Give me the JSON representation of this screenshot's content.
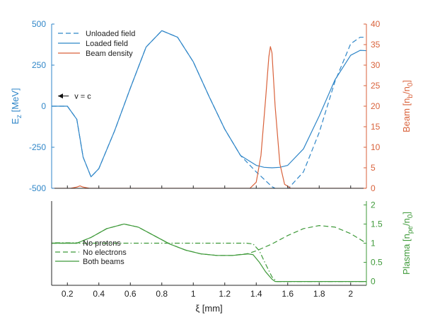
{
  "colors": {
    "blue": "#2f86c8",
    "orange": "#d9623b",
    "green": "#3f9a3a",
    "axis": "#262626"
  },
  "chart_data": [
    {
      "type": "line",
      "name": "top-panel",
      "xlabel": "",
      "xlim": [
        0.1,
        2.1
      ],
      "ylabel_left": "E_z [MeV]",
      "ylim_left": [
        -500,
        500
      ],
      "yticks_left": [
        -500,
        -250,
        0,
        250,
        500
      ],
      "ytick_labels_left": [
        "-500",
        "-250",
        "0",
        "250",
        "500"
      ],
      "ylabel_right": "Beam [n_b/n_0]",
      "ylim_right": [
        0,
        40
      ],
      "yticks_right": [
        0,
        5,
        10,
        15,
        20,
        25,
        30,
        35,
        40
      ],
      "ytick_labels_right": [
        "0",
        "5",
        "10",
        "15",
        "20",
        "25",
        "30",
        "35",
        "40"
      ],
      "legend_position": "top-left",
      "annotation": {
        "text": "v = c",
        "x": 0.2,
        "y": 62
      },
      "series": [
        {
          "name": "Unloaded field",
          "axis": "left",
          "style": "dashed",
          "color": "#2f86c8",
          "x": [
            0.1,
            0.2,
            0.26,
            0.3,
            0.35,
            0.4,
            0.5,
            0.6,
            0.7,
            0.8,
            0.9,
            1.0,
            1.1,
            1.2,
            1.3,
            1.4,
            1.5,
            1.55,
            1.6,
            1.7,
            1.8,
            1.9,
            2.0,
            2.06,
            2.1
          ],
          "y": [
            0,
            0,
            -80,
            -310,
            -430,
            -380,
            -150,
            110,
            360,
            460,
            420,
            270,
            60,
            -140,
            -300,
            -400,
            -490,
            -515,
            -505,
            -400,
            -160,
            150,
            380,
            420,
            420
          ]
        },
        {
          "name": "Loaded field",
          "axis": "left",
          "style": "solid",
          "color": "#2f86c8",
          "x": [
            0.1,
            0.2,
            0.26,
            0.3,
            0.35,
            0.4,
            0.5,
            0.6,
            0.7,
            0.8,
            0.9,
            1.0,
            1.1,
            1.2,
            1.3,
            1.4,
            1.45,
            1.5,
            1.55,
            1.6,
            1.7,
            1.8,
            1.9,
            2.0,
            2.06,
            2.1
          ],
          "y": [
            0,
            0,
            -80,
            -310,
            -430,
            -380,
            -150,
            110,
            360,
            460,
            420,
            270,
            60,
            -140,
            -300,
            -360,
            -372,
            -375,
            -372,
            -360,
            -260,
            -60,
            160,
            310,
            340,
            338
          ]
        },
        {
          "name": "Beam density",
          "axis": "right",
          "style": "solid",
          "color": "#d9623b",
          "x": [
            0.1,
            0.22,
            0.26,
            0.28,
            0.3,
            0.34,
            1.36,
            1.4,
            1.43,
            1.46,
            1.48,
            1.49,
            1.5,
            1.52,
            1.55,
            1.58,
            1.62,
            2.1
          ],
          "y": [
            0,
            0,
            0.3,
            0.6,
            0.3,
            0,
            0,
            1.5,
            8,
            22,
            32,
            34.5,
            33,
            20,
            6,
            1,
            0,
            0
          ]
        }
      ]
    },
    {
      "type": "line",
      "name": "bottom-panel",
      "xlabel": "ξ [mm]",
      "xlim": [
        0.1,
        2.1
      ],
      "xticks": [
        0.2,
        0.4,
        0.6,
        0.8,
        1,
        1.2,
        1.4,
        1.6,
        1.8,
        2
      ],
      "xtick_labels": [
        "0.2",
        "0.4",
        "0.6",
        "0.8",
        "1",
        "1.2",
        "1.4",
        "1.6",
        "1.8",
        "2"
      ],
      "ylabel_right": "Plasma [n_pe/n_0]",
      "ylim_right": [
        -0.1,
        2.1
      ],
      "yticks_right": [
        0,
        0.5,
        1,
        1.5,
        2
      ],
      "ytick_labels_right": [
        "0",
        "0.5",
        "1",
        "1.5",
        "2"
      ],
      "legend_position": "bottom-left",
      "series": [
        {
          "name": "No protons",
          "style": "dashdot",
          "color": "#3f9a3a",
          "x": [
            0.1,
            1.34,
            1.38,
            1.42,
            1.46,
            1.5,
            1.53,
            2.1
          ],
          "y": [
            1,
            1,
            0.98,
            0.8,
            0.45,
            0.12,
            0,
            0
          ]
        },
        {
          "name": "No electrons",
          "style": "dashed",
          "color": "#3f9a3a",
          "x": [
            0.1,
            0.26,
            0.35,
            0.45,
            0.56,
            0.65,
            0.75,
            0.85,
            0.95,
            1.05,
            1.15,
            1.25,
            1.35,
            1.4,
            1.5,
            1.6,
            1.7,
            1.8,
            1.9,
            2.0,
            2.1
          ],
          "y": [
            1,
            1,
            1.15,
            1.38,
            1.5,
            1.42,
            1.2,
            0.98,
            0.82,
            0.72,
            0.68,
            0.68,
            0.73,
            0.8,
            0.98,
            1.2,
            1.38,
            1.46,
            1.42,
            1.25,
            1.0
          ]
        },
        {
          "name": "Both beams",
          "style": "solid",
          "color": "#3f9a3a",
          "x": [
            0.1,
            0.26,
            0.35,
            0.45,
            0.56,
            0.65,
            0.75,
            0.85,
            0.95,
            1.05,
            1.15,
            1.25,
            1.35,
            1.38,
            1.42,
            1.46,
            1.5,
            1.52,
            2.1
          ],
          "y": [
            1,
            1,
            1.15,
            1.38,
            1.5,
            1.42,
            1.2,
            0.98,
            0.82,
            0.72,
            0.68,
            0.68,
            0.72,
            0.7,
            0.5,
            0.25,
            0.06,
            0,
            0
          ]
        }
      ]
    }
  ]
}
